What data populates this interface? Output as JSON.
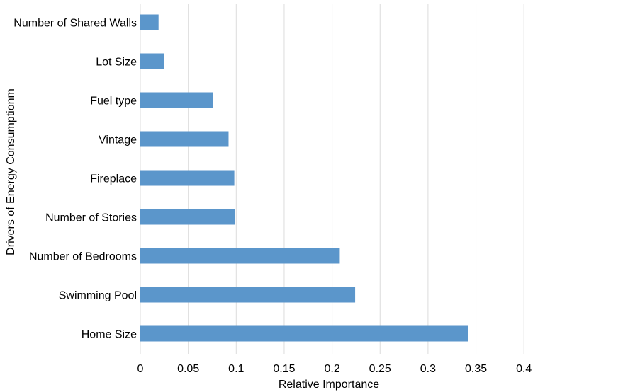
{
  "chart_data": {
    "type": "bar",
    "orientation": "horizontal",
    "title": "",
    "xlabel": "Relative Importance",
    "ylabel": "Drivers of Energy Consumptionm",
    "xlim": [
      0,
      0.4
    ],
    "xticks": [
      "0",
      "0.05",
      "0.1",
      "0.15",
      "0.2",
      "0.25",
      "0.3",
      "0.35",
      "0.4"
    ],
    "grid": "vertical",
    "legend": "none",
    "bar_color": "#5b96cb",
    "grid_color": "#dcdcdc",
    "categories": [
      "Number of Shared Walls",
      "Lot Size",
      "Fuel type",
      "Vintage",
      "Fireplace",
      "Number of Stories",
      "Number of Bedrooms",
      "Swimming Pool",
      "Home Size"
    ],
    "values": [
      0.019,
      0.025,
      0.076,
      0.092,
      0.098,
      0.099,
      0.208,
      0.224,
      0.342
    ]
  }
}
